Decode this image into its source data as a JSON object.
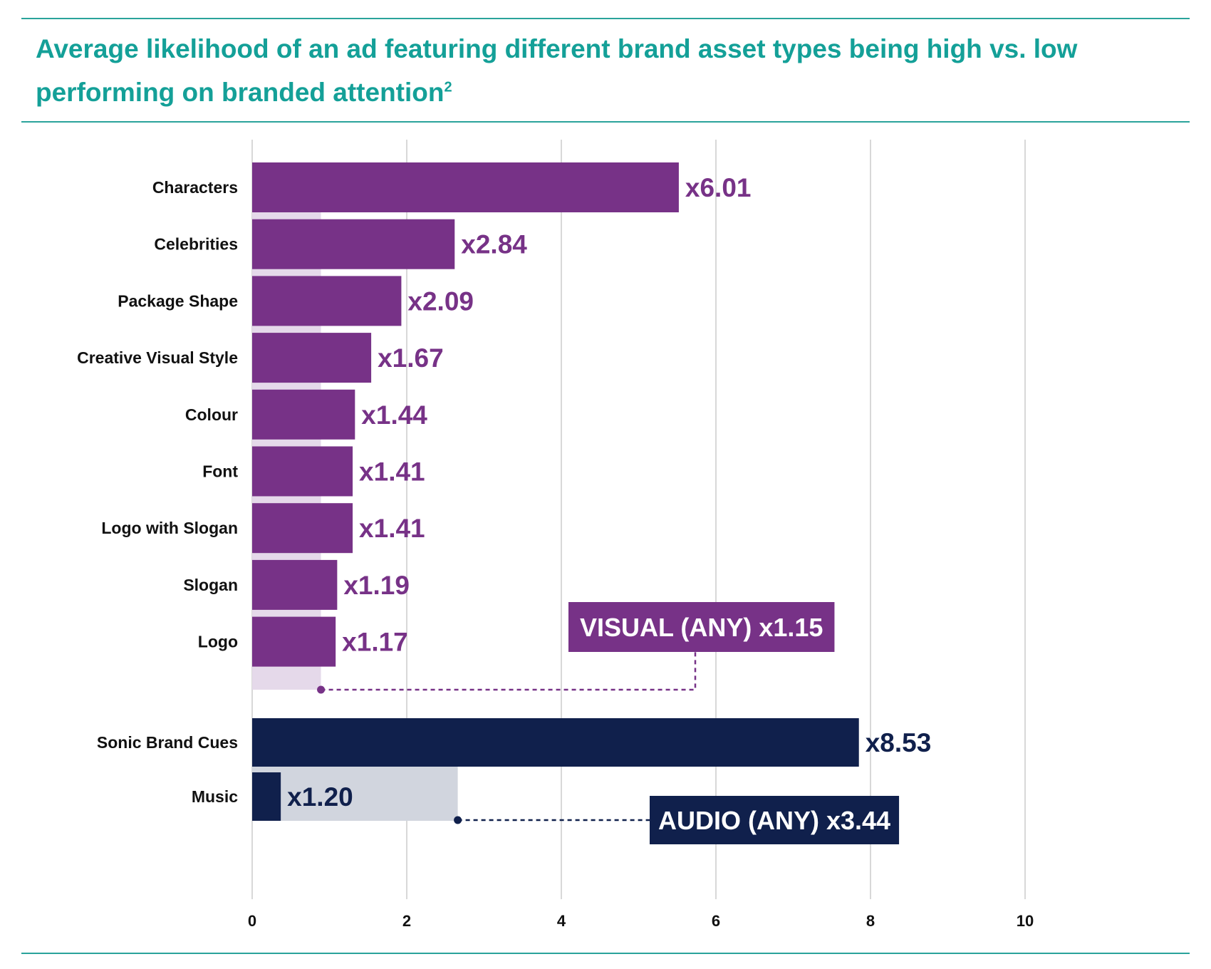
{
  "title": "Average likelihood of an ad featuring different brand asset types being high vs. low performing on branded attention",
  "title_superscript": "2",
  "colors": {
    "accent": "#14a098",
    "visual": "#773287",
    "visual_light": "#e5d9ea",
    "audio": "#10204c",
    "audio_light": "#d1d5de",
    "grid": "#bdbdbd"
  },
  "chart_data": {
    "type": "bar",
    "orientation": "horizontal",
    "xlim": [
      0,
      10
    ],
    "xticks": [
      0,
      2,
      4,
      6,
      8,
      10
    ],
    "grid": true,
    "groups": [
      {
        "key": "visual",
        "categories": [
          "Characters",
          "Celebrities",
          "Package Shape",
          "Creative Visual Style",
          "Colour",
          "Font",
          "Logo with Slogan",
          "Slogan",
          "Logo"
        ],
        "values": [
          5.52,
          2.62,
          1.93,
          1.54,
          1.33,
          1.3,
          1.3,
          1.1,
          1.08
        ],
        "labels": [
          "x6.01",
          "x2.84",
          "x2.09",
          "x1.67",
          "x1.44",
          "x1.41",
          "x1.41",
          "x1.19",
          "x1.17"
        ],
        "aggregate": {
          "value": 0.89,
          "label": "VISUAL (ANY) x1.15"
        }
      },
      {
        "key": "audio",
        "categories": [
          "Sonic Brand Cues",
          "Music"
        ],
        "values": [
          7.85,
          0.37
        ],
        "labels": [
          "x8.53",
          "x1.20"
        ],
        "aggregate": {
          "value": 2.66,
          "label": "AUDIO (ANY) x3.44"
        }
      }
    ]
  }
}
